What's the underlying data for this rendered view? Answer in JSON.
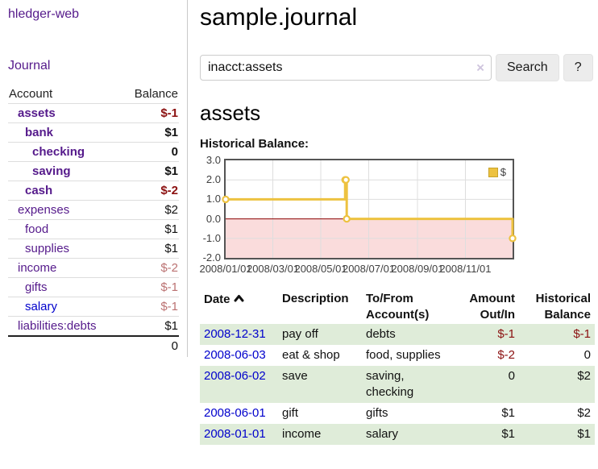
{
  "colors": {
    "link_purple": "#551a8b",
    "link_blue": "#0000cc",
    "negative_strong": "#8b1010",
    "negative_soft": "#bb7272",
    "row_stripe_green": "#dfecd9",
    "series_yellow": "#edc240",
    "negative_region_pink": "#fadcdc",
    "zero_line_red": "#8b0000",
    "gridline_gray": "#dedede"
  },
  "sidebar": {
    "brand": "hledger-web",
    "journal_label": "Journal",
    "accounts": {
      "col_account": "Account",
      "col_balance": "Balance",
      "rows": [
        {
          "name": "assets",
          "depth": 1,
          "bold": true,
          "link_style": "purple",
          "balance": "$-1",
          "balance_style": "neg-strong"
        },
        {
          "name": "bank",
          "depth": 2,
          "bold": true,
          "link_style": "purple",
          "balance": "$1",
          "balance_style": "pos"
        },
        {
          "name": "checking",
          "depth": 3,
          "bold": true,
          "link_style": "purple",
          "balance": "0",
          "balance_style": "pos"
        },
        {
          "name": "saving",
          "depth": 3,
          "bold": true,
          "link_style": "purple",
          "balance": "$1",
          "balance_style": "pos"
        },
        {
          "name": "cash",
          "depth": 2,
          "bold": true,
          "link_style": "purple",
          "balance": "$-2",
          "balance_style": "neg-strong"
        },
        {
          "name": "expenses",
          "depth": 1,
          "bold": false,
          "link_style": "purple",
          "balance": "$2",
          "balance_style": "pos"
        },
        {
          "name": "food",
          "depth": 2,
          "bold": false,
          "link_style": "purple",
          "balance": "$1",
          "balance_style": "pos"
        },
        {
          "name": "supplies",
          "depth": 2,
          "bold": false,
          "link_style": "purple",
          "balance": "$1",
          "balance_style": "pos"
        },
        {
          "name": "income",
          "depth": 1,
          "bold": false,
          "link_style": "purple",
          "balance": "$-2",
          "balance_style": "neg-soft"
        },
        {
          "name": "gifts",
          "depth": 2,
          "bold": false,
          "link_style": "purple",
          "balance": "$-1",
          "balance_style": "neg-soft"
        },
        {
          "name": "salary",
          "depth": 2,
          "bold": false,
          "link_style": "blue",
          "balance": "$-1",
          "balance_style": "neg-soft"
        },
        {
          "name": "liabilities:debts",
          "depth": 1,
          "bold": false,
          "link_style": "purple",
          "balance": "$1",
          "balance_style": "pos"
        }
      ],
      "total": "0"
    }
  },
  "main": {
    "title": "sample.journal",
    "search": {
      "value": "inacct:assets",
      "clear_icon": "×",
      "button_label": "Search",
      "help_label": "?"
    },
    "account_heading": "assets",
    "chart_label": "Historical Balance:",
    "register": {
      "headers": [
        "Date",
        "Description",
        "To/From Account(s)",
        "Amount Out/In",
        "Historical Balance"
      ],
      "sort": {
        "column": "Date",
        "direction": "ascending"
      },
      "rows": [
        {
          "date": "2008-12-31",
          "description": "pay off",
          "accounts": "debts",
          "amount": "$-1",
          "amount_style": "neg",
          "balance": "$-1",
          "balance_style": "neg"
        },
        {
          "date": "2008-06-03",
          "description": "eat & shop",
          "accounts": "food, supplies",
          "amount": "$-2",
          "amount_style": "neg",
          "balance": "0",
          "balance_style": "pos"
        },
        {
          "date": "2008-06-02",
          "description": "save",
          "accounts": "saving, checking",
          "amount": "0",
          "amount_style": "pos",
          "balance": "$2",
          "balance_style": "pos"
        },
        {
          "date": "2008-06-01",
          "description": "gift",
          "accounts": "gifts",
          "amount": "$1",
          "amount_style": "pos",
          "balance": "$2",
          "balance_style": "pos"
        },
        {
          "date": "2008-01-01",
          "description": "income",
          "accounts": "salary",
          "amount": "$1",
          "amount_style": "pos",
          "balance": "$1",
          "balance_style": "pos"
        }
      ]
    }
  },
  "chart_data": {
    "type": "line",
    "step": true,
    "title": "Historical Balance",
    "series": [
      {
        "name": "$",
        "color": "#edc240",
        "points": [
          [
            "2008-01-01",
            1
          ],
          [
            "2008-06-01",
            2
          ],
          [
            "2008-06-02",
            2
          ],
          [
            "2008-06-03",
            0
          ],
          [
            "2008-12-31",
            -1
          ]
        ]
      }
    ],
    "x_range": [
      "2008-01-01",
      "2008-12-31"
    ],
    "ylim": [
      -2,
      3
    ],
    "y_ticks": [
      "3.0",
      "2.0",
      "1.0",
      "0.0",
      "-1.0",
      "-2.0"
    ],
    "x_ticks": [
      "2008/01/01",
      "2008/03/01",
      "2008/05/01",
      "2008/07/01",
      "2008/09/01",
      "2008/11/01"
    ],
    "legend": "$",
    "legend_position": "top-right",
    "grid": true,
    "negative_region": true
  }
}
